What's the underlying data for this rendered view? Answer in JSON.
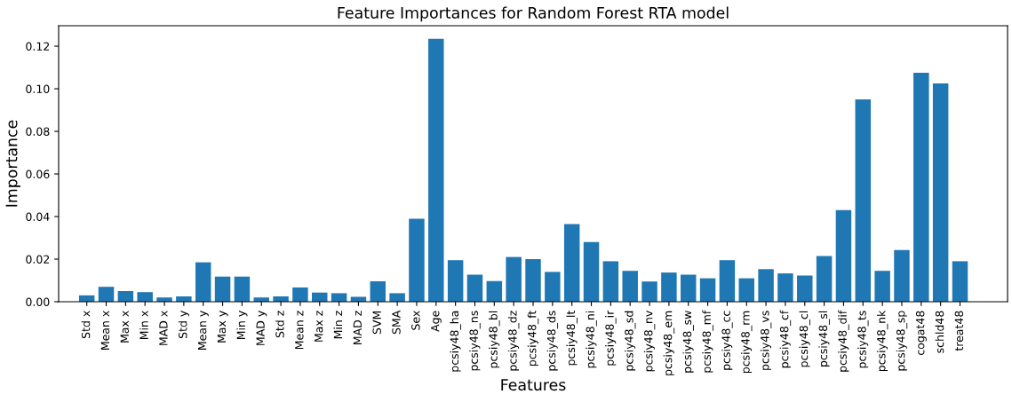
{
  "chart_data": {
    "type": "bar",
    "title": "Feature Importances for Random Forest RTA model",
    "xlabel": "Features",
    "ylabel": "Importance",
    "categories": [
      "Std x",
      "Mean x",
      "Max x",
      "Min x",
      "MAD x",
      "Std y",
      "Mean y",
      "Max y",
      "Min y",
      "MAD y",
      "Std z",
      "Mean z",
      "Max z",
      "Min z",
      "MAD z",
      "SVM",
      "SMA",
      "Sex",
      "Age",
      "pcsiy48_ha",
      "pcsiy48_ns",
      "pcsiy48_bl",
      "pcsiy48_dz",
      "pcsiy48_ft",
      "pcsiy48_ds",
      "pcsiy48_lt",
      "pcsiy48_ni",
      "pcsiy48_ir",
      "pcsiy48_sd",
      "pcsiy48_nv",
      "pcsiy48_em",
      "pcsiy48_sw",
      "pcsiy48_mf",
      "pcsiy48_cc",
      "pcsiy48_rm",
      "pcsiy48_vs",
      "pcsiy48_cf",
      "pcsiy48_cl",
      "pcsiy48_sl",
      "pcsiy48_dif",
      "pcsiy48_ts",
      "pcsiy48_nk",
      "pcsiy48_sp",
      "cogat48",
      "schld48",
      "treat48"
    ],
    "values": [
      0.003,
      0.007,
      0.005,
      0.0045,
      0.002,
      0.0025,
      0.0185,
      0.0118,
      0.0118,
      0.002,
      0.0025,
      0.0067,
      0.0043,
      0.004,
      0.0023,
      0.0096,
      0.004,
      0.039,
      0.1235,
      0.0195,
      0.0127,
      0.0097,
      0.021,
      0.02,
      0.014,
      0.0365,
      0.028,
      0.019,
      0.0145,
      0.0095,
      0.0137,
      0.0127,
      0.011,
      0.0195,
      0.011,
      0.0153,
      0.0133,
      0.0123,
      0.0215,
      0.043,
      0.095,
      0.0145,
      0.0243,
      0.1075,
      0.1025,
      0.019
    ],
    "color": "#1f77b4",
    "ylim": [
      0,
      0.1296
    ],
    "yticks": [
      {
        "value": 0,
        "label": "0.00"
      },
      {
        "value": 0.02,
        "label": "0.02"
      },
      {
        "value": 0.04,
        "label": "0.04"
      },
      {
        "value": 0.06,
        "label": "0.06"
      },
      {
        "value": 0.08,
        "label": "0.08"
      },
      {
        "value": 0.1,
        "label": "0.10"
      },
      {
        "value": 0.12,
        "label": "0.12"
      }
    ],
    "grid": false
  }
}
